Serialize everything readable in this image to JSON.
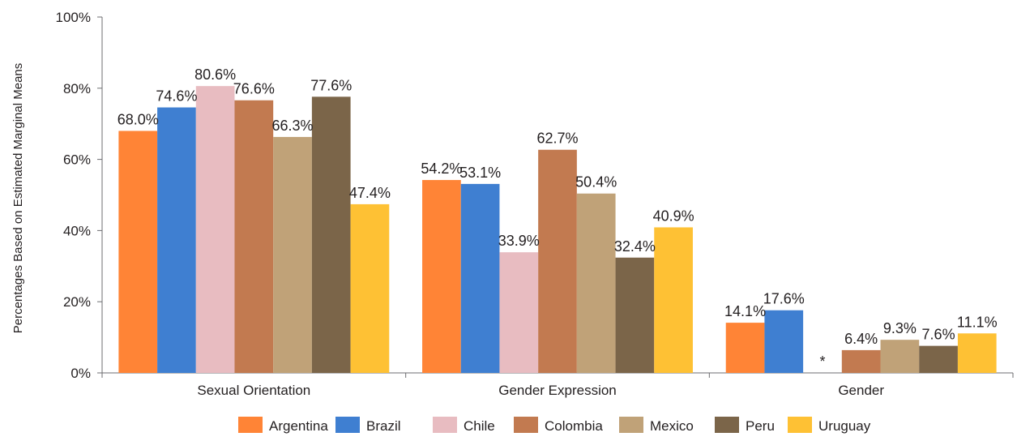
{
  "chart_data": {
    "type": "bar",
    "title": "",
    "xlabel": "",
    "ylabel": "Percentages Based on Estimated Marginal Means",
    "ylim": [
      0,
      100
    ],
    "yticks": [
      0,
      20,
      40,
      60,
      80,
      100
    ],
    "ytick_labels": [
      "0%",
      "20%",
      "40%",
      "60%",
      "80%",
      "100%"
    ],
    "grid": false,
    "legend_position": "bottom",
    "categories": [
      "Sexual Orientation",
      "Gender Expression",
      "Gender"
    ],
    "series": [
      {
        "name": "Argentina",
        "color": "#ff8436",
        "values": [
          68.0,
          54.2,
          14.1
        ],
        "labels": [
          "68.0%",
          "54.2%",
          "14.1%"
        ]
      },
      {
        "name": "Brazil",
        "color": "#3f7fd1",
        "values": [
          74.6,
          53.1,
          17.6
        ],
        "labels": [
          "74.6%",
          "53.1%",
          "17.6%"
        ]
      },
      {
        "name": "Chile",
        "color": "#e8bcc1",
        "values": [
          80.6,
          33.9,
          null
        ],
        "labels": [
          "80.6%",
          "33.9%",
          "*"
        ]
      },
      {
        "name": "Colombia",
        "color": "#c27a50",
        "values": [
          76.6,
          62.7,
          6.4
        ],
        "labels": [
          "76.6%",
          "62.7%",
          "6.4%"
        ]
      },
      {
        "name": "Mexico",
        "color": "#c0a278",
        "values": [
          66.3,
          50.4,
          9.3
        ],
        "labels": [
          "66.3%",
          "50.4%",
          "9.3%"
        ]
      },
      {
        "name": "Peru",
        "color": "#7b6549",
        "values": [
          77.6,
          32.4,
          7.6
        ],
        "labels": [
          "77.6%",
          "32.4%",
          "7.6%"
        ]
      },
      {
        "name": "Uruguay",
        "color": "#fec134",
        "values": [
          47.4,
          40.9,
          11.1
        ],
        "labels": [
          "47.4%",
          "40.9%",
          "11.1%"
        ]
      }
    ]
  }
}
